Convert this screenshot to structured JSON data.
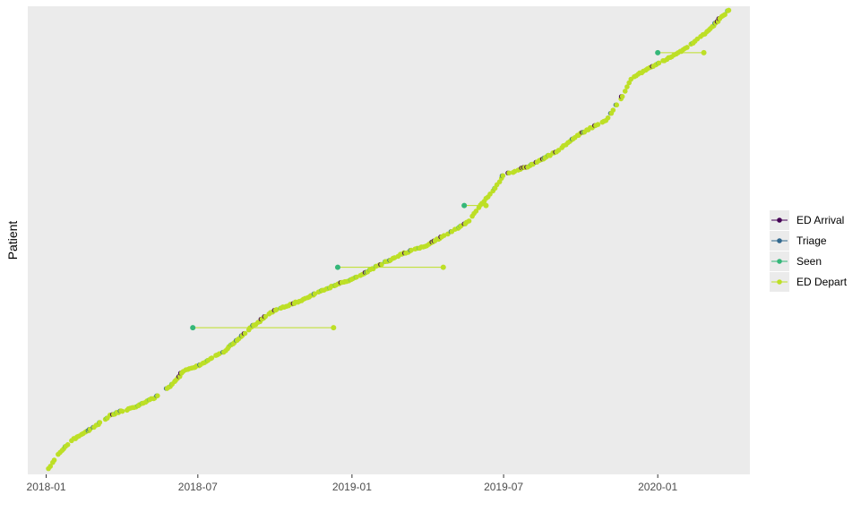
{
  "chart_data": {
    "type": "scatter",
    "title": "",
    "xlabel": "",
    "ylabel": "Patient",
    "x_type": "date",
    "xlim": [
      "2017-12-10",
      "2020-04-20"
    ],
    "x_ticks": [
      "2018-01",
      "2018-07",
      "2019-01",
      "2019-07",
      "2020-01"
    ],
    "ylim": [
      0,
      1
    ],
    "grid": false,
    "background": "#ebebeb",
    "legend_position": "right",
    "series": [
      {
        "name": "ED Arrival",
        "color": "#440154"
      },
      {
        "name": "Triage",
        "color": "#31688e"
      },
      {
        "name": "Seen",
        "color": "#35b779"
      },
      {
        "name": "ED Depart",
        "color": "#bddf26"
      }
    ],
    "trajectory": [
      [
        "2018-01-01",
        0.0
      ],
      [
        "2018-01-15",
        0.04
      ],
      [
        "2018-02-01",
        0.07
      ],
      [
        "2018-03-01",
        0.1
      ],
      [
        "2018-03-20",
        0.125
      ],
      [
        "2018-04-15",
        0.14
      ],
      [
        "2018-05-15",
        0.165
      ],
      [
        "2018-06-01",
        0.19
      ],
      [
        "2018-06-15",
        0.22
      ],
      [
        "2018-07-01",
        0.23
      ],
      [
        "2018-08-01",
        0.26
      ],
      [
        "2018-09-01",
        0.31
      ],
      [
        "2018-10-01",
        0.35
      ],
      [
        "2018-11-01",
        0.37
      ],
      [
        "2018-12-01",
        0.395
      ],
      [
        "2018-12-20",
        0.41
      ],
      [
        "2019-01-01",
        0.415
      ],
      [
        "2019-02-01",
        0.445
      ],
      [
        "2019-03-01",
        0.47
      ],
      [
        "2019-04-01",
        0.49
      ],
      [
        "2019-05-01",
        0.52
      ],
      [
        "2019-05-20",
        0.54
      ],
      [
        "2019-06-01",
        0.57
      ],
      [
        "2019-06-20",
        0.61
      ],
      [
        "2019-07-01",
        0.64
      ],
      [
        "2019-08-01",
        0.66
      ],
      [
        "2019-09-01",
        0.69
      ],
      [
        "2019-10-01",
        0.73
      ],
      [
        "2019-11-01",
        0.76
      ],
      [
        "2019-11-20",
        0.81
      ],
      [
        "2019-12-01",
        0.85
      ],
      [
        "2020-01-01",
        0.88
      ],
      [
        "2020-02-01",
        0.91
      ],
      [
        "2020-03-01",
        0.95
      ],
      [
        "2020-03-28",
        1.0
      ]
    ],
    "long_stays": [
      {
        "arrival": "2018-06-25",
        "depart": "2018-12-10",
        "y": 0.312
      },
      {
        "arrival": "2018-12-15",
        "depart": "2019-04-20",
        "y": 0.442
      },
      {
        "arrival": "2019-05-15",
        "depart": "2019-06-10",
        "y": 0.575
      },
      {
        "arrival": "2020-01-01",
        "depart": "2020-02-25",
        "y": 0.904
      }
    ]
  },
  "legend": {
    "items": [
      "ED Arrival",
      "Triage",
      "Seen",
      "ED Depart"
    ]
  }
}
